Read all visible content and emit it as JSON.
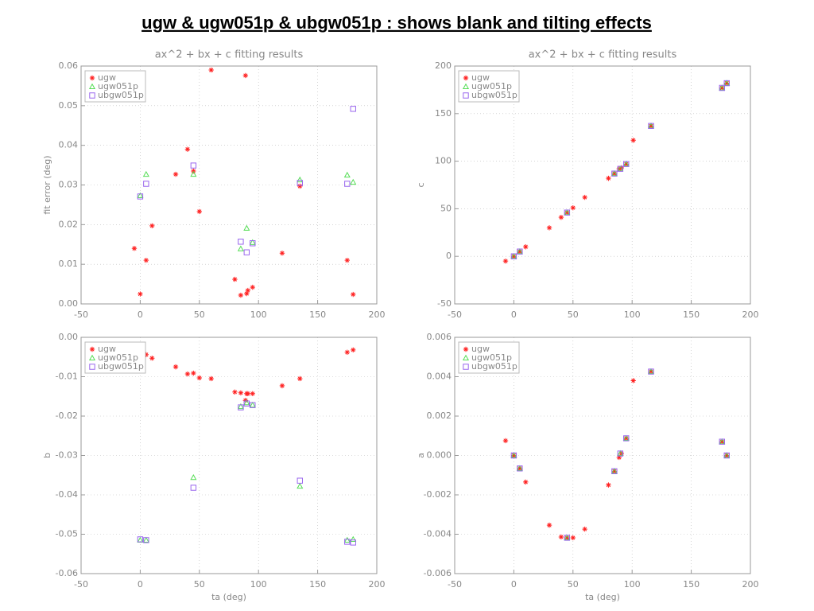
{
  "title": "ugw & ugw051p & ubgw051p : shows blank and tilting effects",
  "chart_data": [
    {
      "type": "scatter",
      "title": "ax^2 + bx + c fitting results",
      "ylabel": "fit error (deg)",
      "xlim": [
        -50,
        200
      ],
      "xticks": [
        -50,
        0,
        50,
        100,
        150,
        200
      ],
      "ylim": [
        0,
        0.06
      ],
      "yticks": [
        {
          "value": 0,
          "label": "0.00"
        },
        0.01,
        0.02,
        0.03,
        0.04,
        0.05,
        0.06
      ],
      "grid": true,
      "legend": "upper left",
      "series": [
        {
          "name": "ugw",
          "color": "#ff2020",
          "marker": "asterisk",
          "x": [
            -5,
            0,
            5,
            10,
            30,
            40,
            45,
            50,
            60,
            80,
            85,
            89,
            90,
            91,
            95,
            120,
            135,
            175,
            180
          ],
          "values": [
            0.014,
            0.0025,
            0.011,
            0.0197,
            0.0327,
            0.039,
            0.0335,
            0.0233,
            0.059,
            0.0062,
            0.0022,
            0.0576,
            0.0026,
            0.0034,
            0.0042,
            0.0128,
            0.0297,
            0.011,
            0.0024
          ]
        },
        {
          "name": "ugw051p",
          "color": "#55dd55",
          "marker": "triangle",
          "x": [
            0,
            5,
            45,
            85,
            90,
            95,
            135,
            175,
            180
          ],
          "values": [
            0.0273,
            0.0327,
            0.0327,
            0.0139,
            0.0191,
            0.0155,
            0.0313,
            0.0325,
            0.0307
          ]
        },
        {
          "name": "ubgw051p",
          "color": "#9966ee",
          "marker": "square",
          "x": [
            0,
            5,
            45,
            85,
            90,
            95,
            135,
            175,
            180
          ],
          "values": [
            0.0271,
            0.0303,
            0.0349,
            0.0157,
            0.013,
            0.0153,
            0.0305,
            0.0303,
            0.0492
          ]
        }
      ]
    },
    {
      "type": "scatter",
      "title": "ax^2 + bx + c fitting results",
      "ylabel": "c",
      "xlim": [
        -50,
        200
      ],
      "xticks": [
        -50,
        0,
        50,
        100,
        150,
        200
      ],
      "ylim": [
        -50,
        200
      ],
      "yticks": [
        -50,
        0,
        50,
        100,
        150,
        200
      ],
      "grid": true,
      "legend": "upper left",
      "series": [
        {
          "name": "ugw",
          "color": "#ff2020",
          "marker": "asterisk",
          "x": [
            -7,
            0,
            5,
            10,
            30,
            40,
            45,
            50,
            60,
            80,
            85,
            89,
            91,
            95,
            101,
            116,
            176,
            180
          ],
          "values": [
            -5,
            0,
            5,
            10,
            30,
            41,
            46,
            51,
            62,
            82,
            87,
            92,
            93,
            97,
            122,
            137,
            177,
            182
          ]
        },
        {
          "name": "ugw051p",
          "color": "#55dd55",
          "marker": "triangle",
          "x": [
            0,
            5,
            45,
            85,
            90,
            95,
            116,
            176,
            180
          ],
          "values": [
            0,
            5,
            46,
            87,
            92,
            97,
            137,
            177,
            182
          ]
        },
        {
          "name": "ubgw051p",
          "color": "#9966ee",
          "marker": "square",
          "x": [
            0,
            5,
            45,
            85,
            90,
            95,
            116,
            176,
            180
          ],
          "values": [
            0,
            5,
            46,
            87,
            92,
            97,
            137,
            177,
            182
          ]
        }
      ]
    },
    {
      "type": "scatter",
      "ylabel": "b",
      "xlabel": "ta (deg)",
      "xlim": [
        -50,
        200
      ],
      "xticks": [
        -50,
        0,
        50,
        100,
        150,
        200
      ],
      "ylim": [
        -0.06,
        0
      ],
      "yticks": [
        {
          "value": -0.06,
          "label": "-0.06"
        },
        {
          "value": -0.05,
          "label": "-0.05"
        },
        {
          "value": -0.04,
          "label": "-0.04"
        },
        {
          "value": -0.03,
          "label": "-0.03"
        },
        {
          "value": -0.02,
          "label": "-0.02"
        },
        {
          "value": -0.01,
          "label": "-0.01"
        },
        {
          "value": 0,
          "label": "0.00"
        }
      ],
      "grid": true,
      "legend": "upper left",
      "series": [
        {
          "name": "ugw",
          "color": "#ff2020",
          "marker": "asterisk",
          "x": [
            -5,
            0,
            5,
            10,
            30,
            40,
            45,
            50,
            60,
            80,
            85,
            89,
            90,
            91,
            95,
            120,
            135,
            175,
            180
          ],
          "values": [
            -0.0032,
            -0.0038,
            -0.0044,
            -0.0053,
            -0.0075,
            -0.0093,
            -0.0091,
            -0.0103,
            -0.0105,
            -0.0139,
            -0.0141,
            -0.016,
            -0.0143,
            -0.0143,
            -0.0143,
            -0.0123,
            -0.0105,
            -0.0038,
            -0.0032
          ]
        },
        {
          "name": "ugw051p",
          "color": "#55dd55",
          "marker": "triangle",
          "x": [
            0,
            5,
            45,
            85,
            90,
            95,
            135,
            175,
            180
          ],
          "values": [
            -0.0515,
            -0.0515,
            -0.0356,
            -0.0176,
            -0.0166,
            -0.0172,
            -0.0378,
            -0.0515,
            -0.0513
          ]
        },
        {
          "name": "ubgw051p",
          "color": "#9966ee",
          "marker": "square",
          "x": [
            0,
            5,
            45,
            85,
            90,
            95,
            135,
            175,
            180
          ],
          "values": [
            -0.0513,
            -0.0515,
            -0.0382,
            -0.0178,
            -0.0168,
            -0.0172,
            -0.0364,
            -0.0519,
            -0.0521
          ]
        }
      ]
    },
    {
      "type": "scatter",
      "ylabel": "a",
      "xlabel": "ta (deg)",
      "xlim": [
        -50,
        200
      ],
      "xticks": [
        -50,
        0,
        50,
        100,
        150,
        200
      ],
      "ylim": [
        -0.006,
        0.006
      ],
      "yticks": [
        {
          "value": -0.006,
          "label": "-0.006"
        },
        {
          "value": -0.004,
          "label": "-0.004"
        },
        {
          "value": -0.002,
          "label": "-0.002"
        },
        {
          "value": 0,
          "label": "0.000"
        },
        0.002,
        0.004,
        0.006
      ],
      "grid": true,
      "legend": "upper left",
      "series": [
        {
          "name": "ugw",
          "color": "#ff2020",
          "marker": "asterisk",
          "x": [
            -7,
            0,
            5,
            10,
            30,
            40,
            45,
            50,
            60,
            80,
            85,
            89,
            91,
            95,
            101,
            116,
            176,
            180
          ],
          "values": [
            0.00075,
            0,
            -0.00066,
            -0.00135,
            -0.00354,
            -0.00414,
            -0.00418,
            -0.00418,
            -0.00374,
            -0.0015,
            -0.0008,
            -0.0001,
            0.0001,
            0.00087,
            0.0038,
            0.00426,
            0.0007,
            0
          ]
        },
        {
          "name": "ugw051p",
          "color": "#55dd55",
          "marker": "triangle",
          "x": [
            0,
            5,
            45,
            85,
            90,
            95,
            116,
            176,
            180
          ],
          "values": [
            0,
            -0.00066,
            -0.00418,
            -0.0008,
            0.0001,
            0.00087,
            0.00426,
            0.0007,
            0
          ]
        },
        {
          "name": "ubgw051p",
          "color": "#9966ee",
          "marker": "square",
          "x": [
            0,
            5,
            45,
            85,
            90,
            95,
            116,
            176,
            180
          ],
          "values": [
            0,
            -0.00066,
            -0.00418,
            -0.0008,
            0.0001,
            0.00087,
            0.00426,
            0.0007,
            0
          ]
        }
      ]
    }
  ]
}
